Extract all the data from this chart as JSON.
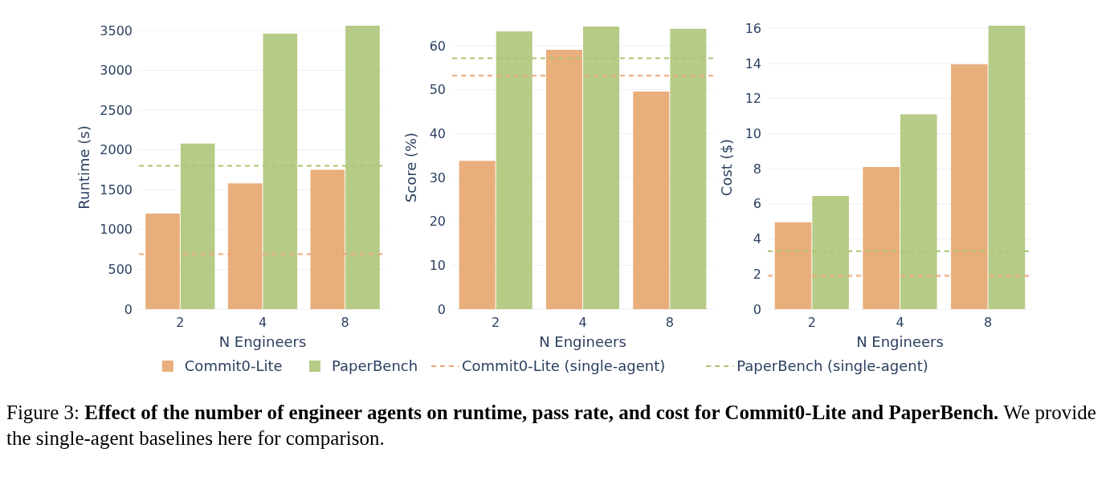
{
  "chart_data": [
    {
      "type": "bar",
      "categories": [
        "2",
        "4",
        "8"
      ],
      "xlabel": "N Engineers",
      "ylabel": "Runtime (s)",
      "ylim": [
        0,
        3560
      ],
      "yticks": [
        0,
        500,
        1000,
        1500,
        2000,
        2500,
        3000,
        3500
      ],
      "grid": "y",
      "legend": "bottom",
      "series": [
        {
          "name": "Commit0-Lite",
          "color": "#e8ae7b",
          "values": [
            1200,
            1580,
            1750
          ]
        },
        {
          "name": "PaperBench",
          "color": "#b6cb86",
          "values": [
            2080,
            3460,
            3560
          ]
        }
      ],
      "ref_lines": [
        {
          "axis": "y",
          "value": 690,
          "label": "Commit0-Lite (single-agent)",
          "color": "#eea777",
          "line_style": "dashed"
        },
        {
          "axis": "y",
          "value": 1800,
          "label": "PaperBench (single-agent)",
          "color": "#aac573",
          "line_style": "dashed"
        }
      ],
      "annotations": [
        "Figure 3:",
        "Effect of the number of engineer agents on runtime, pass rate, and cost for Commit0-Lite and PaperBench.",
        "We provide the single-agent baselines here for comparison."
      ]
    },
    {
      "type": "bar",
      "categories": [
        "2",
        "4",
        "8"
      ],
      "xlabel": "N Engineers",
      "ylabel": "Score (%)",
      "ylim": [
        0,
        64.6
      ],
      "yticks": [
        0,
        10,
        20,
        30,
        40,
        50,
        60
      ],
      "grid": "y",
      "series": [
        {
          "color": "#e8ae7b",
          "values": [
            33.8,
            59.1,
            49.6
          ]
        },
        {
          "color": "#b6cb86",
          "values": [
            63.3,
            64.4,
            63.9
          ]
        }
      ],
      "ref_lines": [
        {
          "axis": "y",
          "value": 53.2,
          "color": "#eea777",
          "line_style": "dashed"
        },
        {
          "axis": "y",
          "value": 57.2,
          "color": "#aac573",
          "line_style": "dashed"
        }
      ]
    },
    {
      "type": "bar",
      "categories": [
        "2",
        "4",
        "8"
      ],
      "xlabel": "N Engineers",
      "ylabel": "Cost ($)",
      "ylim": [
        0,
        16.15
      ],
      "yticks": [
        0,
        2,
        4,
        6,
        8,
        10,
        12,
        14,
        16
      ],
      "grid": "y",
      "series": [
        {
          "color": "#e8ae7b",
          "values": [
            4.95,
            8.1,
            13.95
          ]
        },
        {
          "color": "#b6cb86",
          "values": [
            6.45,
            11.1,
            16.15
          ]
        }
      ],
      "ref_lines": [
        {
          "axis": "y",
          "value": 1.9,
          "color": "#eea777",
          "line_style": "dashed"
        },
        {
          "axis": "y",
          "value": 3.3,
          "color": "#aac573",
          "line_style": "dashed"
        }
      ]
    }
  ]
}
